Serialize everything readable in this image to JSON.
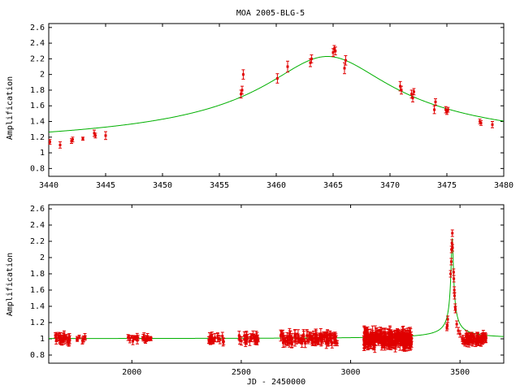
{
  "title": "MOA 2005-BLG-5",
  "chart_data": [
    {
      "type": "scatter",
      "panel": "top",
      "ylabel": "Amplification",
      "xlabel": "",
      "xlim": [
        3440,
        3480
      ],
      "ylim": [
        0.7,
        2.65
      ],
      "xticks": [
        3440,
        3445,
        3450,
        3455,
        3460,
        3465,
        3470,
        3475,
        3480
      ],
      "yticks": [
        0.8,
        1,
        1.2,
        1.4,
        1.6,
        1.8,
        2,
        2.2,
        2.4,
        2.6
      ],
      "ytick_labels": [
        "0.8",
        "1",
        "1.2",
        "1.4",
        "1.6",
        "1.8",
        "2",
        "2.2",
        "2.4",
        "2.6"
      ],
      "model": {
        "t0": 3464.5,
        "amax": 2.23,
        "tau": 5.4,
        "color": "#00b000"
      },
      "series": [
        {
          "color": "#e00000",
          "points": [
            {
              "x": 3440.1,
              "y": 1.14,
              "e": 0.03
            },
            {
              "x": 3441.0,
              "y": 1.1,
              "e": 0.04
            },
            {
              "x": 3442.0,
              "y": 1.15,
              "e": 0.03
            },
            {
              "x": 3442.1,
              "y": 1.17,
              "e": 0.03
            },
            {
              "x": 3443.0,
              "y": 1.18,
              "e": 0.02
            },
            {
              "x": 3444.0,
              "y": 1.25,
              "e": 0.04
            },
            {
              "x": 3444.1,
              "y": 1.22,
              "e": 0.03
            },
            {
              "x": 3445.0,
              "y": 1.22,
              "e": 0.05
            },
            {
              "x": 3456.9,
              "y": 1.75,
              "e": 0.05
            },
            {
              "x": 3457.0,
              "y": 1.8,
              "e": 0.05
            },
            {
              "x": 3457.1,
              "y": 2.0,
              "e": 0.06
            },
            {
              "x": 3460.1,
              "y": 1.95,
              "e": 0.06
            },
            {
              "x": 3461.0,
              "y": 2.1,
              "e": 0.07
            },
            {
              "x": 3463.0,
              "y": 2.15,
              "e": 0.05
            },
            {
              "x": 3463.1,
              "y": 2.2,
              "e": 0.05
            },
            {
              "x": 3465.0,
              "y": 2.28,
              "e": 0.05
            },
            {
              "x": 3465.1,
              "y": 2.33,
              "e": 0.04
            },
            {
              "x": 3465.2,
              "y": 2.3,
              "e": 0.05
            },
            {
              "x": 3466.0,
              "y": 2.08,
              "e": 0.07
            },
            {
              "x": 3466.1,
              "y": 2.18,
              "e": 0.06
            },
            {
              "x": 3470.9,
              "y": 1.85,
              "e": 0.06
            },
            {
              "x": 3471.0,
              "y": 1.8,
              "e": 0.05
            },
            {
              "x": 3471.9,
              "y": 1.75,
              "e": 0.05
            },
            {
              "x": 3472.0,
              "y": 1.7,
              "e": 0.05
            },
            {
              "x": 3472.1,
              "y": 1.78,
              "e": 0.04
            },
            {
              "x": 3473.9,
              "y": 1.55,
              "e": 0.05
            },
            {
              "x": 3474.0,
              "y": 1.65,
              "e": 0.04
            },
            {
              "x": 3474.9,
              "y": 1.55,
              "e": 0.04
            },
            {
              "x": 3475.0,
              "y": 1.52,
              "e": 0.03
            },
            {
              "x": 3475.1,
              "y": 1.55,
              "e": 0.03
            },
            {
              "x": 3477.9,
              "y": 1.4,
              "e": 0.03
            },
            {
              "x": 3478.0,
              "y": 1.38,
              "e": 0.03
            },
            {
              "x": 3479.0,
              "y": 1.36,
              "e": 0.04
            }
          ]
        }
      ]
    },
    {
      "type": "scatter",
      "panel": "bottom",
      "ylabel": "Amplification",
      "xlabel": "JD - 2450000",
      "xlim": [
        1620,
        3700
      ],
      "ylim": [
        0.7,
        2.65
      ],
      "xticks": [
        2000,
        2500,
        3000,
        3500
      ],
      "yticks": [
        0.8,
        1,
        1.2,
        1.4,
        1.6,
        1.8,
        2,
        2.2,
        2.4,
        2.6
      ],
      "ytick_labels": [
        "0.8",
        "1",
        "1.2",
        "1.4",
        "1.6",
        "1.8",
        "2",
        "2.2",
        "2.4",
        "2.6"
      ],
      "model": {
        "t0": 3464.5,
        "amax": 2.23,
        "tau": 5.4,
        "color": "#00b000"
      },
      "clusters": [
        {
          "x_from": 1650,
          "x_to": 1720,
          "n": 30,
          "spread": 0.05,
          "err": 0.04
        },
        {
          "x_from": 1750,
          "x_to": 1790,
          "n": 8,
          "spread": 0.03,
          "err": 0.03
        },
        {
          "x_from": 1980,
          "x_to": 2030,
          "n": 12,
          "spread": 0.03,
          "err": 0.03
        },
        {
          "x_from": 2040,
          "x_to": 2090,
          "n": 12,
          "spread": 0.03,
          "err": 0.03
        },
        {
          "x_from": 2350,
          "x_to": 2420,
          "n": 22,
          "spread": 0.04,
          "err": 0.04
        },
        {
          "x_from": 2480,
          "x_to": 2580,
          "n": 28,
          "spread": 0.05,
          "err": 0.04
        },
        {
          "x_from": 2680,
          "x_to": 2940,
          "n": 110,
          "spread": 0.06,
          "err": 0.05
        },
        {
          "x_from": 3060,
          "x_to": 3280,
          "n": 240,
          "spread": 0.08,
          "err": 0.06
        },
        {
          "x_from": 3510,
          "x_to": 3620,
          "n": 80,
          "spread": 0.05,
          "err": 0.04
        }
      ],
      "peak_points": [
        {
          "x": 3440,
          "y": 1.14
        },
        {
          "x": 3442,
          "y": 1.16
        },
        {
          "x": 3444,
          "y": 1.24
        },
        {
          "x": 3457,
          "y": 1.8
        },
        {
          "x": 3460,
          "y": 1.95
        },
        {
          "x": 3461,
          "y": 2.1
        },
        {
          "x": 3463,
          "y": 2.18
        },
        {
          "x": 3465,
          "y": 2.3
        },
        {
          "x": 3466,
          "y": 2.12
        },
        {
          "x": 3471,
          "y": 1.82
        },
        {
          "x": 3472,
          "y": 1.74
        },
        {
          "x": 3474,
          "y": 1.6
        },
        {
          "x": 3475,
          "y": 1.53
        },
        {
          "x": 3478,
          "y": 1.39
        },
        {
          "x": 3479,
          "y": 1.36
        },
        {
          "x": 3485,
          "y": 1.18
        },
        {
          "x": 3492,
          "y": 1.1
        },
        {
          "x": 3500,
          "y": 1.06
        }
      ],
      "series": [
        {
          "color": "#e00000"
        }
      ]
    }
  ]
}
